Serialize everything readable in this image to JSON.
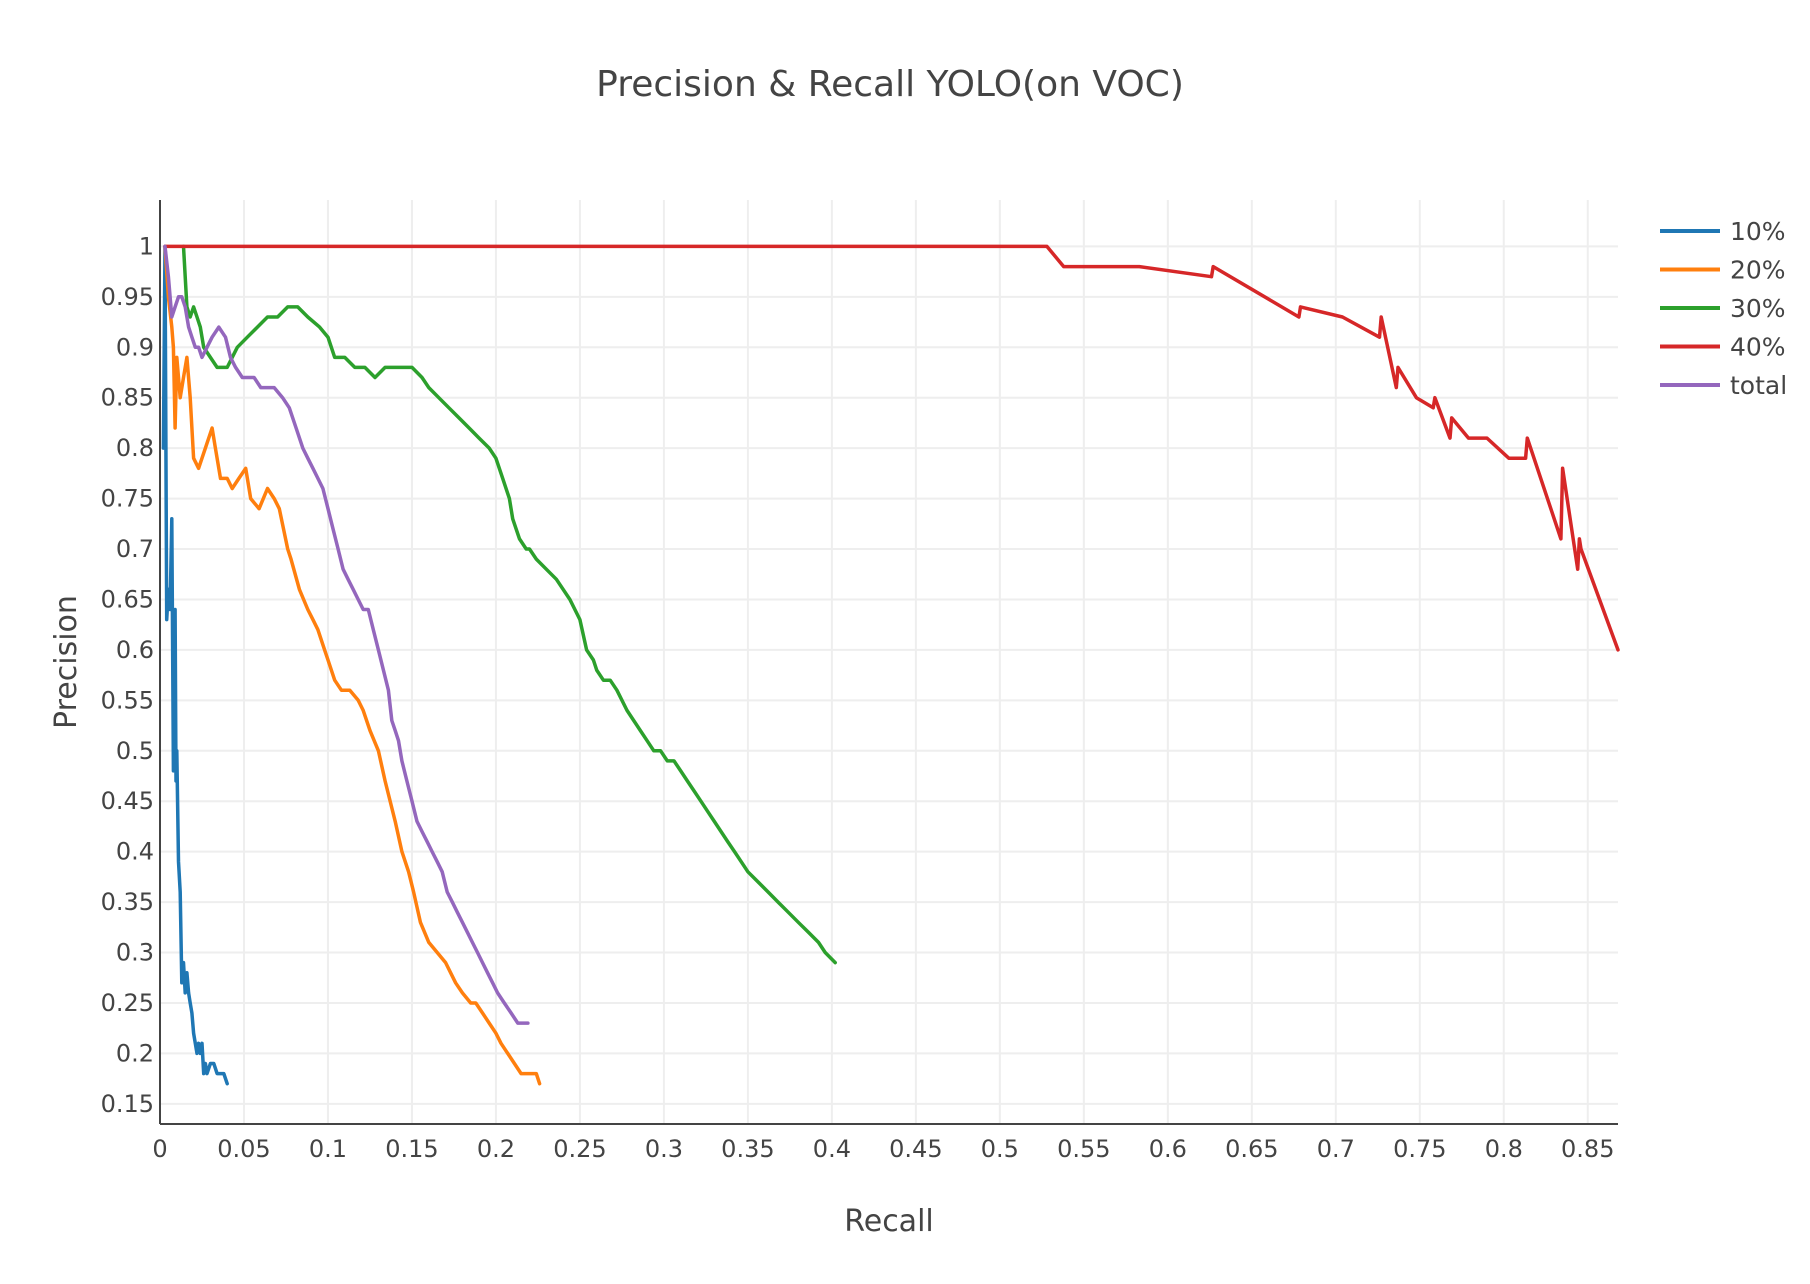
{
  "chart_data": {
    "type": "line",
    "title": "Precision & Recall YOLO(on VOC)",
    "xlabel": "Recall",
    "ylabel": "Precision",
    "xlim": [
      0,
      0.868
    ],
    "ylim": [
      0.13,
      1.046
    ],
    "xticks": [
      "0",
      "0.05",
      "0.1",
      "0.15",
      "0.2",
      "0.25",
      "0.3",
      "0.35",
      "0.4",
      "0.45",
      "0.5",
      "0.55",
      "0.6",
      "0.65",
      "0.7",
      "0.75",
      "0.8",
      "0.85"
    ],
    "yticks": [
      "0.15",
      "0.2",
      "0.25",
      "0.3",
      "0.35",
      "0.4",
      "0.45",
      "0.5",
      "0.55",
      "0.6",
      "0.65",
      "0.7",
      "0.75",
      "0.8",
      "0.85",
      "0.9",
      "0.95",
      "1"
    ],
    "grid": true,
    "legend_position": "top-right",
    "series": [
      {
        "name": "10%",
        "color": "#1f77b4",
        "x": [
          0.002,
          0.003,
          0.004,
          0.005,
          0.006,
          0.007,
          0.008,
          0.009,
          0.0095,
          0.01,
          0.011,
          0.012,
          0.013,
          0.014,
          0.015,
          0.016,
          0.017,
          0.018,
          0.019,
          0.02,
          0.021,
          0.022,
          0.023,
          0.024,
          0.025,
          0.026,
          0.027,
          0.028,
          0.03,
          0.032,
          0.034,
          0.036,
          0.038,
          0.04
        ],
        "y": [
          0.8,
          1.0,
          0.63,
          0.66,
          0.64,
          0.73,
          0.48,
          0.64,
          0.47,
          0.5,
          0.39,
          0.36,
          0.27,
          0.29,
          0.26,
          0.28,
          0.26,
          0.25,
          0.24,
          0.22,
          0.21,
          0.2,
          0.21,
          0.2,
          0.21,
          0.18,
          0.19,
          0.18,
          0.19,
          0.19,
          0.18,
          0.18,
          0.18,
          0.17
        ]
      },
      {
        "name": "20%",
        "color": "#ff7f0e",
        "x": [
          0.003,
          0.005,
          0.007,
          0.008,
          0.009,
          0.01,
          0.012,
          0.014,
          0.016,
          0.018,
          0.02,
          0.023,
          0.027,
          0.031,
          0.033,
          0.036,
          0.04,
          0.043,
          0.047,
          0.051,
          0.054,
          0.059,
          0.064,
          0.068,
          0.071,
          0.076,
          0.078,
          0.083,
          0.088,
          0.091,
          0.094,
          0.098,
          0.1,
          0.104,
          0.108,
          0.113,
          0.118,
          0.121,
          0.125,
          0.13,
          0.134,
          0.14,
          0.144,
          0.148,
          0.151,
          0.155,
          0.16,
          0.165,
          0.17,
          0.176,
          0.18,
          0.185,
          0.188,
          0.192,
          0.196,
          0.2,
          0.203,
          0.207,
          0.211,
          0.215,
          0.218,
          0.221,
          0.224,
          0.226
        ],
        "y": [
          1.0,
          0.95,
          0.92,
          0.9,
          0.82,
          0.89,
          0.85,
          0.87,
          0.89,
          0.85,
          0.79,
          0.78,
          0.8,
          0.82,
          0.8,
          0.77,
          0.77,
          0.76,
          0.77,
          0.78,
          0.75,
          0.74,
          0.76,
          0.75,
          0.74,
          0.7,
          0.69,
          0.66,
          0.64,
          0.63,
          0.62,
          0.6,
          0.59,
          0.57,
          0.56,
          0.56,
          0.55,
          0.54,
          0.52,
          0.5,
          0.47,
          0.43,
          0.4,
          0.38,
          0.36,
          0.33,
          0.31,
          0.3,
          0.29,
          0.27,
          0.26,
          0.25,
          0.25,
          0.24,
          0.23,
          0.22,
          0.21,
          0.2,
          0.19,
          0.18,
          0.18,
          0.18,
          0.18,
          0.17
        ]
      },
      {
        "name": "30%",
        "color": "#2ca02c",
        "x": [
          0.014,
          0.016,
          0.018,
          0.02,
          0.022,
          0.024,
          0.026,
          0.03,
          0.034,
          0.04,
          0.046,
          0.052,
          0.058,
          0.064,
          0.07,
          0.076,
          0.082,
          0.088,
          0.095,
          0.1,
          0.104,
          0.11,
          0.116,
          0.122,
          0.128,
          0.134,
          0.142,
          0.15,
          0.156,
          0.16,
          0.166,
          0.172,
          0.178,
          0.184,
          0.19,
          0.196,
          0.2,
          0.204,
          0.208,
          0.21,
          0.214,
          0.218,
          0.22,
          0.224,
          0.23,
          0.236,
          0.244,
          0.25,
          0.254,
          0.258,
          0.26,
          0.264,
          0.268,
          0.272,
          0.278,
          0.282,
          0.286,
          0.29,
          0.294,
          0.298,
          0.302,
          0.306,
          0.31,
          0.314,
          0.318,
          0.322,
          0.326,
          0.33,
          0.334,
          0.338,
          0.342,
          0.346,
          0.35,
          0.356,
          0.362,
          0.368,
          0.374,
          0.38,
          0.386,
          0.392,
          0.396,
          0.402
        ],
        "y": [
          1.0,
          0.94,
          0.93,
          0.94,
          0.93,
          0.92,
          0.9,
          0.89,
          0.88,
          0.88,
          0.9,
          0.91,
          0.92,
          0.93,
          0.93,
          0.94,
          0.94,
          0.93,
          0.92,
          0.91,
          0.89,
          0.89,
          0.88,
          0.88,
          0.87,
          0.88,
          0.88,
          0.88,
          0.87,
          0.86,
          0.85,
          0.84,
          0.83,
          0.82,
          0.81,
          0.8,
          0.79,
          0.77,
          0.75,
          0.73,
          0.71,
          0.7,
          0.7,
          0.69,
          0.68,
          0.67,
          0.65,
          0.63,
          0.6,
          0.59,
          0.58,
          0.57,
          0.57,
          0.56,
          0.54,
          0.53,
          0.52,
          0.51,
          0.5,
          0.5,
          0.49,
          0.49,
          0.48,
          0.47,
          0.46,
          0.45,
          0.44,
          0.43,
          0.42,
          0.41,
          0.4,
          0.39,
          0.38,
          0.37,
          0.36,
          0.35,
          0.34,
          0.33,
          0.32,
          0.31,
          0.3,
          0.29
        ]
      },
      {
        "name": "40%",
        "color": "#d62728",
        "x": [
          0.003,
          0.528,
          0.538,
          0.583,
          0.626,
          0.627,
          0.678,
          0.679,
          0.704,
          0.726,
          0.727,
          0.736,
          0.737,
          0.748,
          0.758,
          0.759,
          0.768,
          0.769,
          0.779,
          0.79,
          0.803,
          0.813,
          0.814,
          0.834,
          0.835,
          0.844,
          0.845,
          0.846,
          0.868
        ],
        "y": [
          1.0,
          1.0,
          0.98,
          0.98,
          0.97,
          0.98,
          0.93,
          0.94,
          0.93,
          0.91,
          0.93,
          0.86,
          0.88,
          0.85,
          0.84,
          0.85,
          0.81,
          0.83,
          0.81,
          0.81,
          0.79,
          0.79,
          0.81,
          0.71,
          0.78,
          0.68,
          0.71,
          0.7,
          0.6
        ]
      },
      {
        "name": "total",
        "color": "#9467bd",
        "x": [
          0.003,
          0.005,
          0.007,
          0.009,
          0.011,
          0.013,
          0.015,
          0.017,
          0.019,
          0.021,
          0.023,
          0.025,
          0.028,
          0.031,
          0.035,
          0.039,
          0.042,
          0.045,
          0.049,
          0.053,
          0.056,
          0.06,
          0.064,
          0.068,
          0.073,
          0.077,
          0.081,
          0.085,
          0.088,
          0.091,
          0.094,
          0.097,
          0.1,
          0.103,
          0.106,
          0.109,
          0.112,
          0.115,
          0.118,
          0.121,
          0.124,
          0.127,
          0.13,
          0.133,
          0.136,
          0.138,
          0.14,
          0.142,
          0.144,
          0.147,
          0.15,
          0.153,
          0.156,
          0.159,
          0.162,
          0.165,
          0.168,
          0.171,
          0.174,
          0.177,
          0.18,
          0.183,
          0.186,
          0.189,
          0.192,
          0.195,
          0.198,
          0.201,
          0.205,
          0.209,
          0.213,
          0.216,
          0.219
        ],
        "y": [
          1.0,
          0.97,
          0.93,
          0.94,
          0.95,
          0.95,
          0.94,
          0.92,
          0.91,
          0.9,
          0.9,
          0.89,
          0.9,
          0.91,
          0.92,
          0.91,
          0.89,
          0.88,
          0.87,
          0.87,
          0.87,
          0.86,
          0.86,
          0.86,
          0.85,
          0.84,
          0.82,
          0.8,
          0.79,
          0.78,
          0.77,
          0.76,
          0.74,
          0.72,
          0.7,
          0.68,
          0.67,
          0.66,
          0.65,
          0.64,
          0.64,
          0.62,
          0.6,
          0.58,
          0.56,
          0.53,
          0.52,
          0.51,
          0.49,
          0.47,
          0.45,
          0.43,
          0.42,
          0.41,
          0.4,
          0.39,
          0.38,
          0.36,
          0.35,
          0.34,
          0.33,
          0.32,
          0.31,
          0.3,
          0.29,
          0.28,
          0.27,
          0.26,
          0.25,
          0.24,
          0.23,
          0.23,
          0.23
        ]
      }
    ]
  }
}
